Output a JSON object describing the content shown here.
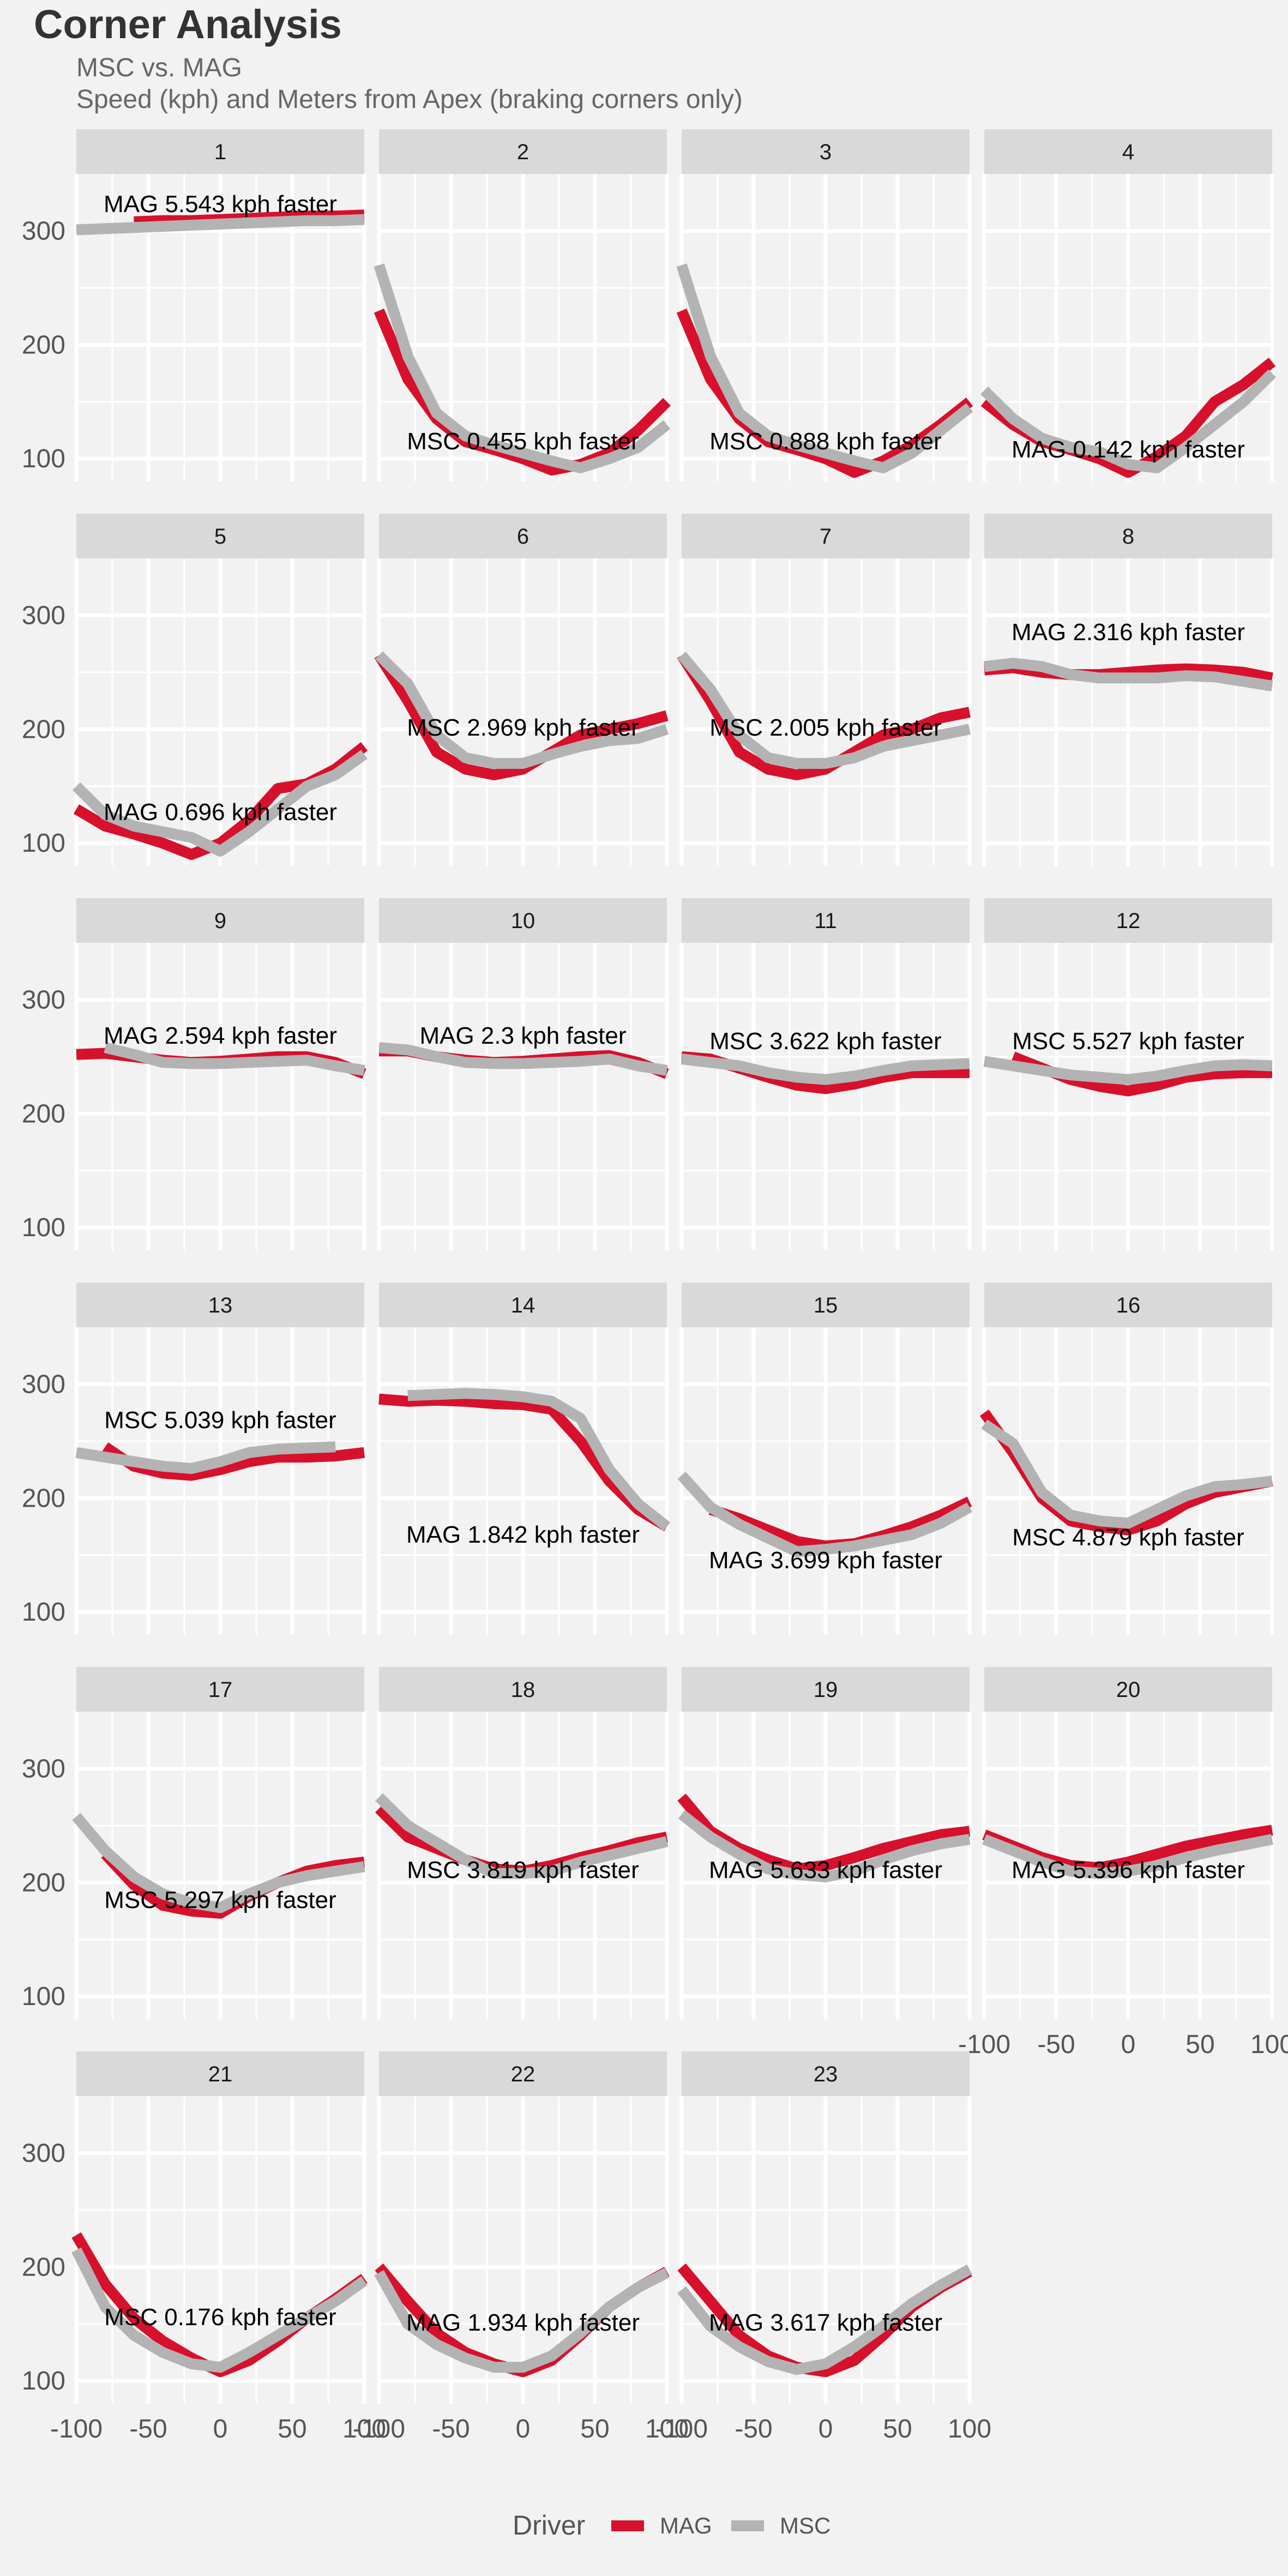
{
  "chart_data": {
    "type": "line",
    "title": "Corner Analysis",
    "subtitle_1": "MSC vs. MAG",
    "subtitle_2": "Speed (kph) and Meters from Apex (braking corners only)",
    "xlim": [
      -100,
      100
    ],
    "ylim": [
      80,
      350
    ],
    "x_ticks": [
      -100,
      -50,
      0,
      50,
      100
    ],
    "x_tick_labels": [
      "-100",
      "-50",
      "0",
      "50",
      "100"
    ],
    "y_ticks": [
      100,
      200,
      300
    ],
    "y_tick_labels": [
      "100",
      "200",
      "300"
    ],
    "grid": true,
    "legend": {
      "title": "Driver",
      "placement": "bottom",
      "entries": [
        {
          "name": "MAG",
          "color": "#d7102c"
        },
        {
          "name": "MSC",
          "color": "#b3b3b3"
        }
      ]
    },
    "x": [
      -100,
      -80,
      -60,
      -40,
      -20,
      0,
      20,
      40,
      60,
      80,
      100
    ],
    "panels": [
      {
        "label": "1",
        "annotation": "MAG 5.543 kph faster",
        "mag": [
          null,
          null,
          308,
          309,
          309,
          310,
          311,
          312,
          313,
          313,
          314
        ],
        "msc": [
          301,
          302,
          303,
          304,
          305,
          306,
          307,
          308,
          309,
          309,
          310
        ]
      },
      {
        "label": "2",
        "annotation": "MSC 0.455 kph faster",
        "mag": [
          230,
          170,
          135,
          115,
          108,
          100,
          90,
          95,
          105,
          125,
          150
        ],
        "msc": [
          270,
          190,
          140,
          120,
          112,
          105,
          98,
          92,
          100,
          110,
          130
        ]
      },
      {
        "label": "3",
        "annotation": "MSC 0.888 kph faster",
        "mag": [
          230,
          170,
          135,
          115,
          108,
          100,
          88,
          98,
          112,
          130,
          150
        ],
        "msc": [
          270,
          190,
          140,
          120,
          112,
          105,
          98,
          92,
          105,
          125,
          145
        ]
      },
      {
        "label": "4",
        "annotation": "MAG 0.142 kph faster",
        "mag": [
          150,
          130,
          115,
          108,
          100,
          88,
          102,
          120,
          150,
          165,
          185
        ],
        "msc": [
          160,
          135,
          118,
          110,
          106,
          95,
          92,
          110,
          130,
          150,
          175
        ]
      },
      {
        "label": "5",
        "annotation": "MAG 0.696 kph faster",
        "mag": [
          130,
          115,
          108,
          100,
          90,
          100,
          120,
          148,
          152,
          165,
          185
        ],
        "msc": [
          150,
          125,
          115,
          110,
          105,
          93,
          110,
          130,
          150,
          160,
          178
        ]
      },
      {
        "label": "6",
        "annotation": "MSC 2.969 kph faster",
        "mag": [
          265,
          225,
          180,
          165,
          160,
          165,
          180,
          195,
          200,
          205,
          212
        ],
        "msc": [
          265,
          240,
          195,
          175,
          170,
          170,
          178,
          185,
          190,
          192,
          200
        ]
      },
      {
        "label": "7",
        "annotation": "MSC 2.005 kph faster",
        "mag": [
          265,
          225,
          180,
          165,
          160,
          165,
          180,
          195,
          200,
          210,
          215
        ],
        "msc": [
          265,
          235,
          195,
          175,
          170,
          170,
          175,
          185,
          190,
          195,
          200
        ]
      },
      {
        "label": "8",
        "annotation": "MAG 2.316 kph faster",
        "mag": [
          252,
          254,
          250,
          248,
          248,
          250,
          252,
          253,
          252,
          250,
          245
        ],
        "msc": [
          255,
          258,
          255,
          248,
          245,
          245,
          245,
          247,
          246,
          242,
          238
        ]
      },
      {
        "label": "9",
        "annotation": "MAG 2.594 kph faster",
        "mag": [
          252,
          253,
          250,
          247,
          245,
          246,
          248,
          250,
          250,
          245,
          235
        ],
        "msc": [
          null,
          258,
          252,
          245,
          244,
          244,
          245,
          246,
          247,
          242,
          238
        ]
      },
      {
        "label": "10",
        "annotation": "MAG 2.3 kph faster",
        "mag": [
          255,
          255,
          250,
          247,
          245,
          246,
          248,
          250,
          251,
          245,
          235
        ],
        "msc": [
          258,
          256,
          250,
          245,
          244,
          244,
          245,
          246,
          248,
          242,
          238
        ]
      },
      {
        "label": "11",
        "annotation": "MSC 3.622 kph faster",
        "mag": [
          250,
          248,
          240,
          232,
          225,
          222,
          226,
          232,
          236,
          236,
          236
        ],
        "msc": [
          248,
          245,
          242,
          236,
          232,
          230,
          233,
          238,
          242,
          243,
          244
        ]
      },
      {
        "label": "12",
        "annotation": "MSC 5.527 kph faster",
        "mag": [
          null,
          250,
          240,
          230,
          224,
          220,
          225,
          232,
          235,
          236,
          236
        ],
        "msc": [
          246,
          242,
          238,
          234,
          232,
          230,
          233,
          238,
          242,
          243,
          242
        ]
      },
      {
        "label": "13",
        "annotation": "MSC 5.039 kph faster",
        "mag": [
          null,
          245,
          228,
          222,
          220,
          225,
          232,
          236,
          236,
          237,
          240
        ],
        "msc": [
          240,
          236,
          232,
          228,
          226,
          232,
          240,
          243,
          244,
          245,
          null
        ]
      },
      {
        "label": "14",
        "annotation": "MAG 1.842 kph faster",
        "mag": [
          287,
          285,
          286,
          285,
          283,
          282,
          278,
          250,
          215,
          190,
          175
        ],
        "msc": [
          null,
          290,
          291,
          292,
          291,
          289,
          285,
          270,
          225,
          195,
          175
        ]
      },
      {
        "label": "15",
        "annotation": "MAG 3.699 kph faster",
        "mag": [
          null,
          190,
          182,
          172,
          162,
          158,
          160,
          167,
          175,
          185,
          197
        ],
        "msc": [
          220,
          192,
          177,
          165,
          153,
          155,
          158,
          163,
          168,
          178,
          192
        ]
      },
      {
        "label": "16",
        "annotation": "MSC 4.879 kph faster",
        "mag": [
          275,
          240,
          200,
          180,
          175,
          172,
          180,
          195,
          205,
          210,
          215
        ],
        "msc": [
          265,
          248,
          205,
          185,
          180,
          178,
          190,
          202,
          210,
          212,
          215
        ]
      },
      {
        "label": "17",
        "annotation": "MSC 5.297 kph faster",
        "mag": [
          null,
          225,
          198,
          180,
          175,
          173,
          188,
          200,
          210,
          215,
          218
        ],
        "msc": [
          258,
          228,
          205,
          190,
          182,
          178,
          190,
          200,
          206,
          210,
          214
        ]
      },
      {
        "label": "18",
        "annotation": "MSC 3.819 kph faster",
        "mag": [
          265,
          240,
          230,
          220,
          212,
          210,
          215,
          222,
          228,
          235,
          240
        ],
        "msc": [
          275,
          250,
          235,
          220,
          208,
          208,
          210,
          218,
          224,
          230,
          236
        ]
      },
      {
        "label": "19",
        "annotation": "MAG 5.633 kph faster",
        "mag": [
          275,
          245,
          230,
          220,
          212,
          215,
          222,
          230,
          236,
          242,
          245
        ],
        "msc": [
          260,
          240,
          225,
          212,
          207,
          205,
          210,
          220,
          228,
          234,
          238
        ]
      },
      {
        "label": "20",
        "annotation": "MAG 5.396 kph faster",
        "mag": [
          242,
          232,
          222,
          215,
          213,
          218,
          225,
          232,
          237,
          242,
          246
        ],
        "msc": [
          238,
          228,
          218,
          210,
          208,
          210,
          215,
          222,
          228,
          233,
          238
        ]
      },
      {
        "label": "21",
        "annotation": "MSC 0.176 kph faster",
        "mag": [
          228,
          185,
          155,
          135,
          120,
          108,
          118,
          135,
          155,
          172,
          190
        ],
        "msc": [
          215,
          165,
          140,
          125,
          115,
          112,
          125,
          140,
          155,
          170,
          188
        ]
      },
      {
        "label": "22",
        "annotation": "MAG 1.934 kph faster",
        "mag": [
          200,
          170,
          142,
          125,
          115,
          108,
          118,
          140,
          165,
          182,
          196
        ],
        "msc": [
          195,
          150,
          132,
          120,
          112,
          112,
          122,
          142,
          165,
          182,
          195
        ]
      },
      {
        "label": "23",
        "annotation": "MAG 3.617 kph faster",
        "mag": [
          200,
          170,
          140,
          122,
          112,
          108,
          118,
          140,
          165,
          182,
          196
        ],
        "msc": [
          180,
          148,
          130,
          117,
          110,
          115,
          130,
          148,
          168,
          184,
          198
        ]
      }
    ]
  }
}
